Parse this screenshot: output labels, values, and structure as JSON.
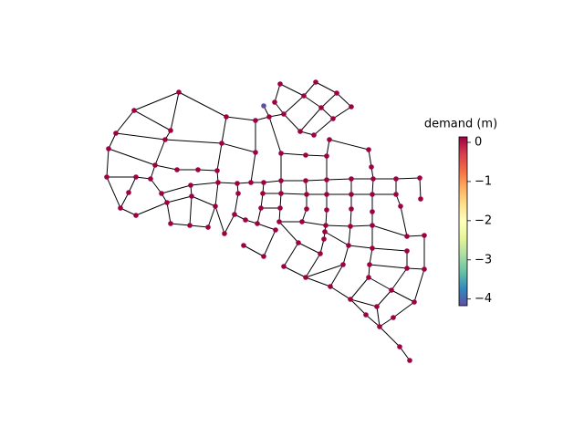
{
  "chart_data": {
    "type": "colorbar",
    "label": "demand (m)",
    "ylim": [
      -4.17,
      0.14
    ],
    "yticks": [
      {
        "value": 0,
        "label": "0"
      },
      {
        "value": -1,
        "label": "−1"
      },
      {
        "value": -2,
        "label": "−2"
      },
      {
        "value": -3,
        "label": "−3"
      },
      {
        "value": -4,
        "label": "−4"
      }
    ],
    "colormap": [
      "#5e4fa2",
      "#3288bd",
      "#66c2a5",
      "#abdda4",
      "#e6f598",
      "#ffffbf",
      "#fee08b",
      "#fdae61",
      "#f46d43",
      "#d53e4f",
      "#9e0142"
    ]
  }
}
